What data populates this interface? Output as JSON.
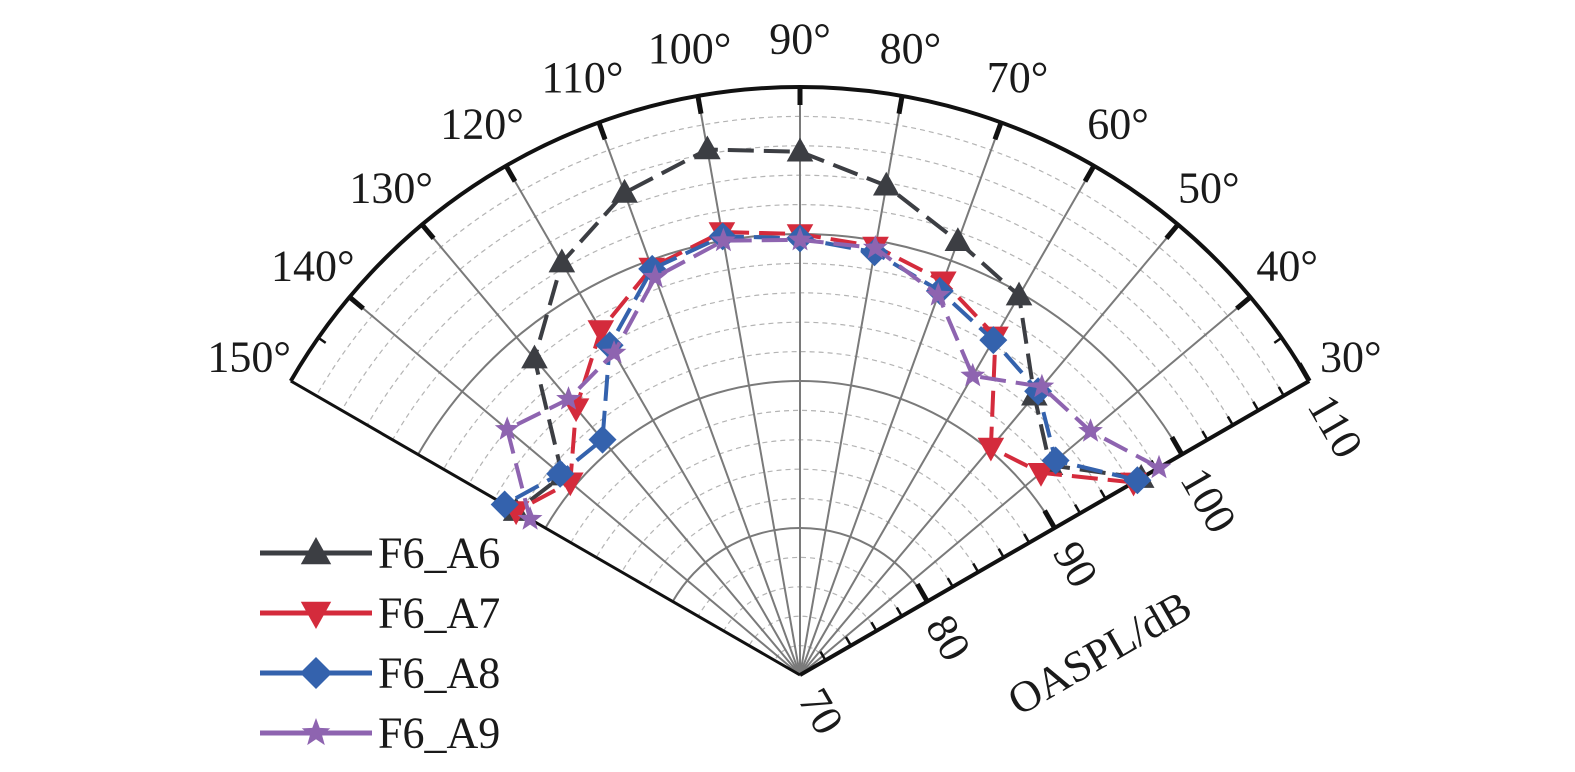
{
  "chart_data": {
    "type": "polar-line",
    "title": "",
    "radial_axis": {
      "label": "OASPL/dB",
      "range": [
        70,
        110
      ],
      "ticks": [
        "70",
        "80",
        "90",
        "100",
        "110"
      ]
    },
    "angular_axis": {
      "range_deg": [
        30,
        150
      ],
      "ticks": [
        "30°",
        "40°",
        "50°",
        "60°",
        "70°",
        "80°",
        "90°",
        "100°",
        "110°",
        "120°",
        "130°",
        "140°",
        "150°"
      ]
    },
    "angles": [
      30,
      40,
      50,
      60,
      70,
      80,
      90,
      100,
      110,
      120,
      130,
      140,
      150
    ],
    "series": [
      {
        "name": "F6_A6",
        "color": "#3c3e43",
        "marker": "triangle-up",
        "values": [
          96.8,
          92.2,
          94.8,
          99.8,
          101.4,
          103.8,
          105.6,
          106.3,
          104.9,
          102.4,
          98.1,
          91.1,
          92.3
        ]
      },
      {
        "name": "F6_A7",
        "color": "#d42b3c",
        "marker": "triangle-down",
        "values": [
          96.2,
          91.4,
          90.2,
          96.6,
          98.5,
          99.6,
          100.0,
          100.6,
          99.5,
          97.1,
          93.7,
          90.4,
          92.3
        ]
      },
      {
        "name": "F6_A8",
        "color": "#3462ad",
        "marker": "diamond",
        "values": [
          96.5,
          92.7,
          95.2,
          96.3,
          97.8,
          99.2,
          99.7,
          100.3,
          99.4,
          95.9,
          90.9,
          91.3,
          93.2
        ]
      },
      {
        "name": "F6_A9",
        "color": "#8e64b0",
        "marker": "star",
        "values": [
          98.2,
          95.8,
          95.6,
          93.5,
          97.5,
          99.5,
          99.6,
          100.0,
          98.8,
          95.3,
          94.5,
          96.0,
          91.2
        ]
      }
    ],
    "grid": true,
    "legend": "bottom-left"
  }
}
